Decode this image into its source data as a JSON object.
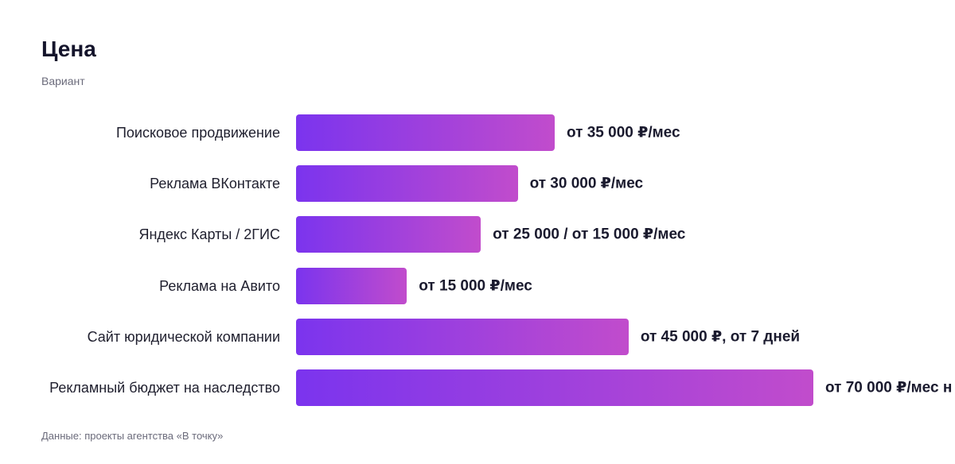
{
  "chart_data": {
    "type": "bar",
    "orientation": "horizontal",
    "title": "Цена",
    "subtitle": "Вариант",
    "note": "Данные: проекты агентства «В точку»",
    "categories": [
      "Поисковое продвижение",
      "Реклама ВКонтакте",
      "Яндекс Карты / 2ГИС",
      "Реклама на Авито",
      "Сайт юридической компании",
      "Рекламный бюджет на наследство"
    ],
    "values": [
      35000,
      30000,
      25000,
      15000,
      45000,
      70000
    ],
    "value_labels": [
      "от 35 000 ₽/мес",
      "от 30 000 ₽/мес",
      "от 25 000 / от 15 000 ₽/мес",
      "от 15 000 ₽/мес",
      "от 45 000 ₽, от 7 дней",
      "от 70 000 ₽/мес н"
    ],
    "colors": [
      "#7b34ee",
      "#c14ccc"
    ],
    "xlim": [
      0,
      70000
    ]
  }
}
